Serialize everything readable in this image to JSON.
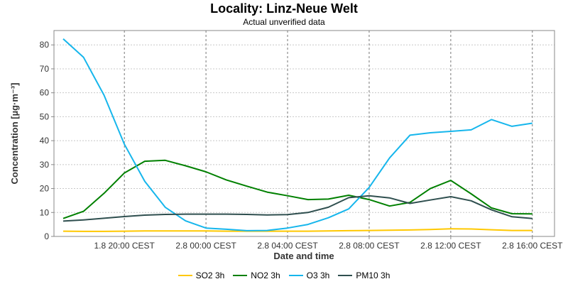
{
  "chart_data": {
    "type": "line",
    "title": "Locality: Linz-Neue Welt",
    "subtitle": "Actual unverified data",
    "xlabel": "Date and time",
    "ylabel": "Concentration [µg·m⁻³]",
    "ylim": [
      0,
      86
    ],
    "yticks": [
      0,
      10,
      20,
      30,
      40,
      50,
      60,
      70,
      80
    ],
    "x": [
      "1.8 17:00 CEST",
      "1.8 18:00 CEST",
      "1.8 19:00 CEST",
      "1.8 20:00 CEST",
      "1.8 21:00 CEST",
      "1.8 22:00 CEST",
      "1.8 23:00 CEST",
      "2.8 00:00 CEST",
      "2.8 01:00 CEST",
      "2.8 02:00 CEST",
      "2.8 03:00 CEST",
      "2.8 04:00 CEST",
      "2.8 05:00 CEST",
      "2.8 06:00 CEST",
      "2.8 07:00 CEST",
      "2.8 08:00 CEST",
      "2.8 09:00 CEST",
      "2.8 10:00 CEST",
      "2.8 11:00 CEST",
      "2.8 12:00 CEST",
      "2.8 13:00 CEST",
      "2.8 14:00 CEST",
      "2.8 15:00 CEST",
      "2.8 16:00 CEST"
    ],
    "xtick_labels": [
      "1.8 20:00 CEST",
      "2.8 00:00 CEST",
      "2.8 04:00 CEST",
      "2.8 08:00 CEST",
      "2.8 12:00 CEST",
      "2.8 16:00 CEST"
    ],
    "grid": true,
    "legend_position": "bottom",
    "series": [
      {
        "name": "SO2 3h",
        "color": "#ffc800",
        "values": [
          2.2,
          2.1,
          2.1,
          2.2,
          2.3,
          2.3,
          2.3,
          2.3,
          2.2,
          2.2,
          2.2,
          2.2,
          2.2,
          2.3,
          2.4,
          2.5,
          2.6,
          2.7,
          2.9,
          3.2,
          3.1,
          2.8,
          2.5,
          2.5
        ]
      },
      {
        "name": "NO2 3h",
        "color": "#008000",
        "values": [
          7.5,
          10.5,
          18.0,
          26.5,
          31.4,
          31.8,
          29.5,
          27.0,
          23.6,
          21.0,
          18.5,
          17.0,
          15.4,
          15.6,
          17.2,
          15.4,
          12.7,
          14.2,
          20.0,
          23.4,
          17.8,
          11.9,
          9.5,
          9.4
        ]
      },
      {
        "name": "O3 3h",
        "color": "#16b6ec",
        "values": [
          82.5,
          74.8,
          59.0,
          38.5,
          23.0,
          12.2,
          6.5,
          3.5,
          3.0,
          2.4,
          2.5,
          3.5,
          5.0,
          7.8,
          11.5,
          20.5,
          32.8,
          42.3,
          43.3,
          43.9,
          44.5,
          48.8,
          46.0,
          47.3
        ]
      },
      {
        "name": "PM10 3h",
        "color": "#2f4f4f",
        "values": [
          6.4,
          6.9,
          7.6,
          8.3,
          8.9,
          9.2,
          9.3,
          9.3,
          9.3,
          9.2,
          9.0,
          9.1,
          10.0,
          12.2,
          16.2,
          17.0,
          16.1,
          13.8,
          15.2,
          16.6,
          14.9,
          11.1,
          8.2,
          7.5
        ]
      }
    ]
  }
}
